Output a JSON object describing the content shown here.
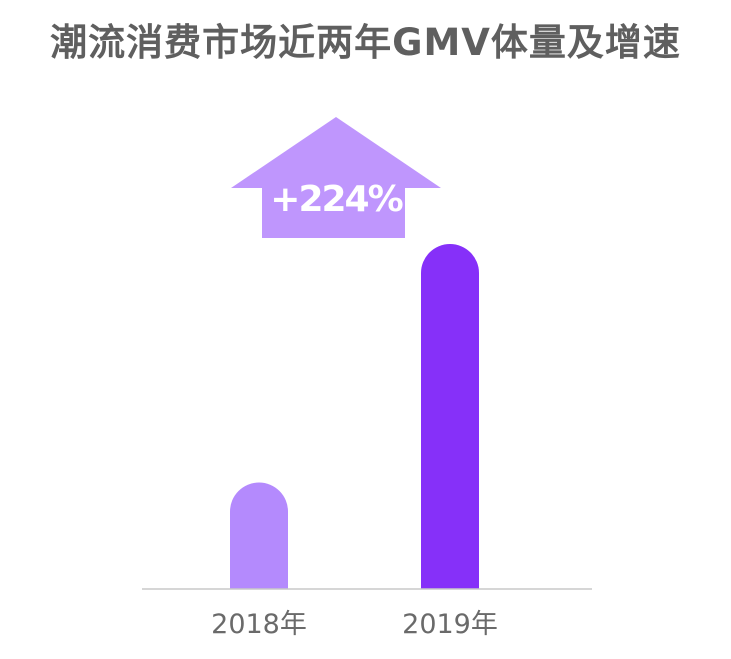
{
  "title": "潮流消费市场近两年GMV体量及增速",
  "chart_data": {
    "type": "bar",
    "title": "潮流消费市场近两年GMV体量及增速",
    "categories": [
      "2018年",
      "2019年"
    ],
    "values": [
      1,
      3.24
    ],
    "growth_label": "+224%",
    "ylim": [
      0,
      3.24
    ],
    "grid": false,
    "colors": {
      "bars": [
        "#b48afd",
        "#8630f9"
      ],
      "arrow": "#bf96fd",
      "axis": "#c8c8c8",
      "tick_text": "#6a6a6a",
      "growth_text": "#ffffff"
    }
  }
}
